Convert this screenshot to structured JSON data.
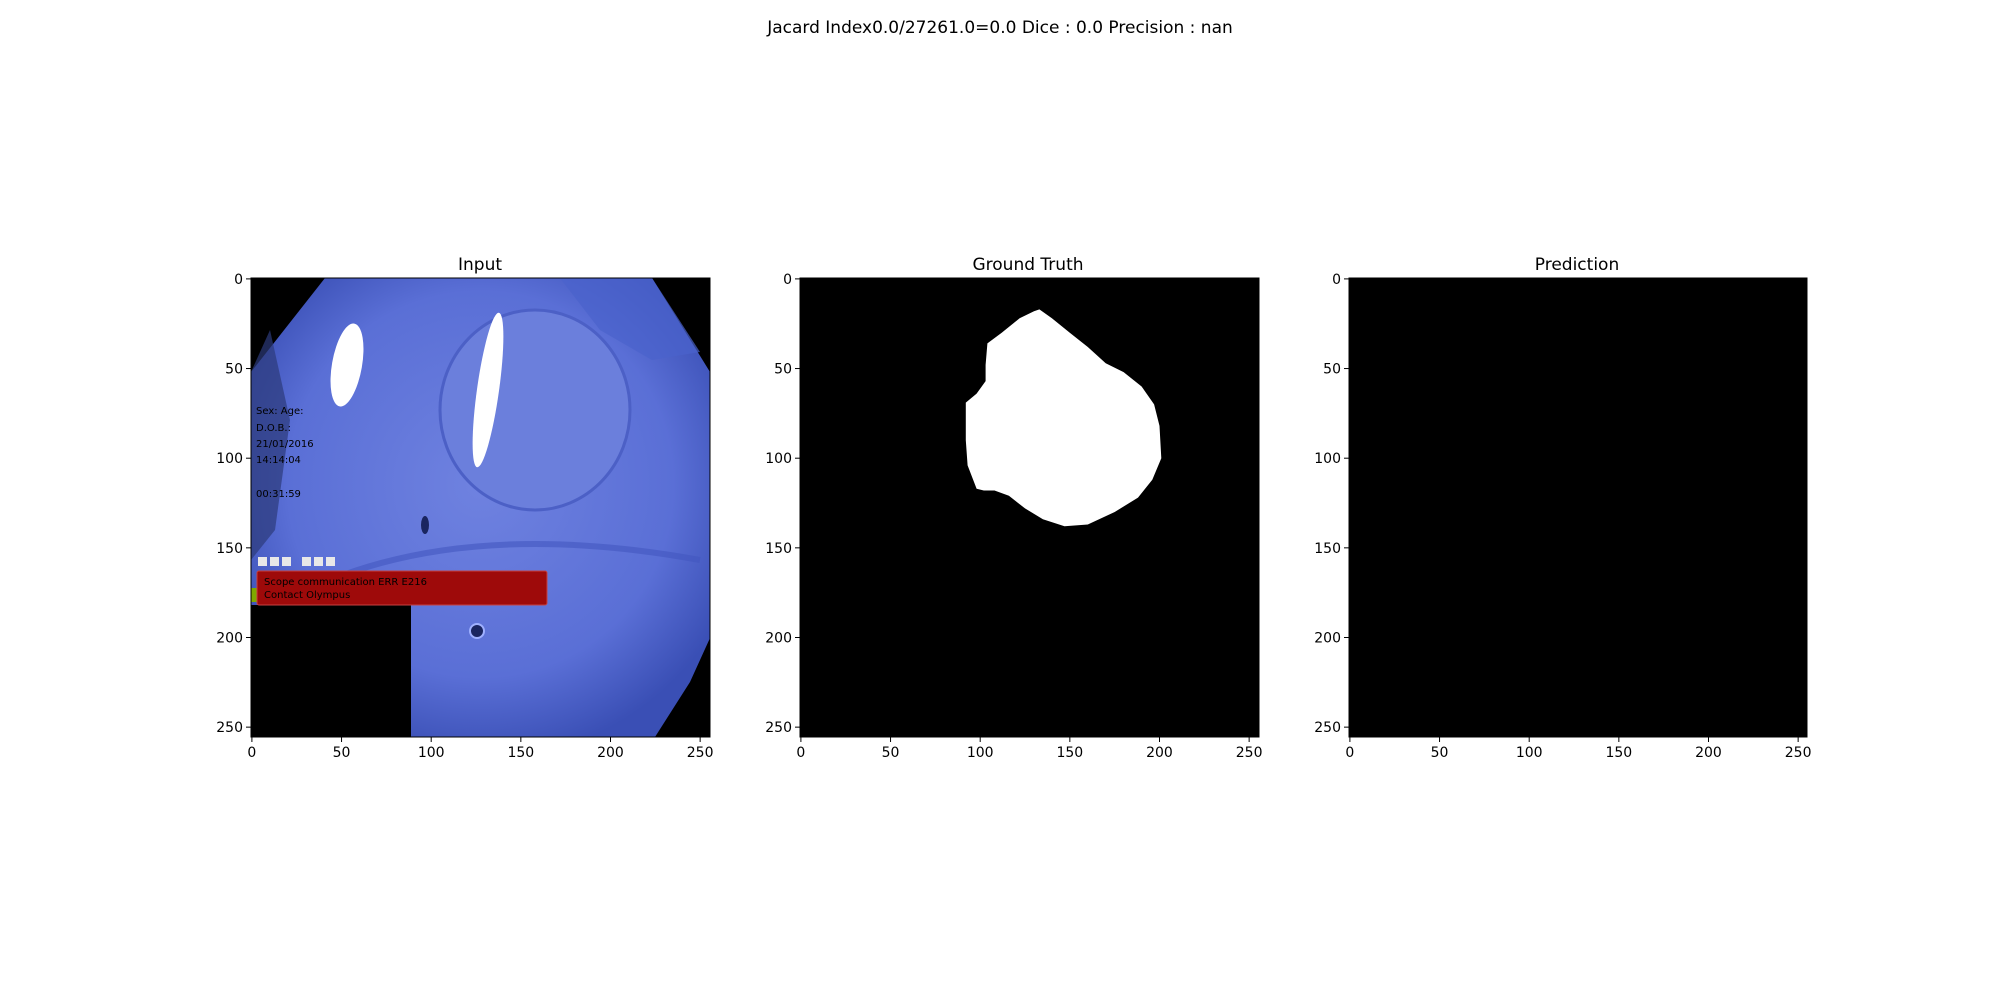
{
  "figure": {
    "suptitle": "Jacard Index0.0/27261.0=0.0 Dice : 0.0 Precision : nan"
  },
  "input_overlay": {
    "sex_line": "Sex:     Age:",
    "dob_label": "D.O.B.:",
    "date": "21/01/2016",
    "time": "14:14:04",
    "elapsed": "00:31:59",
    "error_line1": "Scope communication ERR E216",
    "error_line2": "Contact Olympus"
  },
  "colors": {
    "mucosa": "#5a6fd6",
    "mucosa_dark": "#3f55bf",
    "error_box": "#9e0a0a",
    "mask_fg": "#ffffff",
    "mask_bg": "#000000"
  },
  "chart_data": [
    {
      "type": "image",
      "title": "Input",
      "xlim": [
        0,
        255
      ],
      "ylim": [
        255,
        0
      ],
      "xticks": [
        0,
        50,
        100,
        150,
        200,
        250
      ],
      "yticks": [
        0,
        50,
        100,
        150,
        200,
        250
      ],
      "content": "endoscopy frame"
    },
    {
      "type": "image",
      "title": "Ground Truth",
      "xlim": [
        0,
        255
      ],
      "ylim": [
        255,
        0
      ],
      "xticks": [
        0,
        50,
        100,
        150,
        200,
        250
      ],
      "yticks": [
        0,
        50,
        100,
        150,
        200,
        250
      ],
      "content": "binary mask",
      "mask_polygon": [
        [
          133,
          17
        ],
        [
          140,
          22
        ],
        [
          150,
          30
        ],
        [
          160,
          38
        ],
        [
          170,
          47
        ],
        [
          180,
          52
        ],
        [
          190,
          60
        ],
        [
          197,
          70
        ],
        [
          200,
          82
        ],
        [
          201,
          100
        ],
        [
          196,
          112
        ],
        [
          188,
          122
        ],
        [
          175,
          130
        ],
        [
          160,
          137
        ],
        [
          147,
          138
        ],
        [
          135,
          134
        ],
        [
          125,
          128
        ],
        [
          116,
          121
        ],
        [
          108,
          118
        ],
        [
          102,
          118
        ],
        [
          98,
          117
        ],
        [
          93,
          104
        ],
        [
          92,
          90
        ],
        [
          92,
          69
        ],
        [
          98,
          64
        ],
        [
          103,
          57
        ],
        [
          103,
          48
        ],
        [
          104,
          36
        ],
        [
          112,
          30
        ],
        [
          122,
          22
        ],
        [
          130,
          18
        ]
      ]
    },
    {
      "type": "image",
      "title": "Prediction",
      "xlim": [
        0,
        255
      ],
      "ylim": [
        255,
        0
      ],
      "xticks": [
        0,
        50,
        100,
        150,
        200,
        250
      ],
      "yticks": [
        0,
        50,
        100,
        150,
        200,
        250
      ],
      "content": "binary mask (empty)"
    }
  ]
}
